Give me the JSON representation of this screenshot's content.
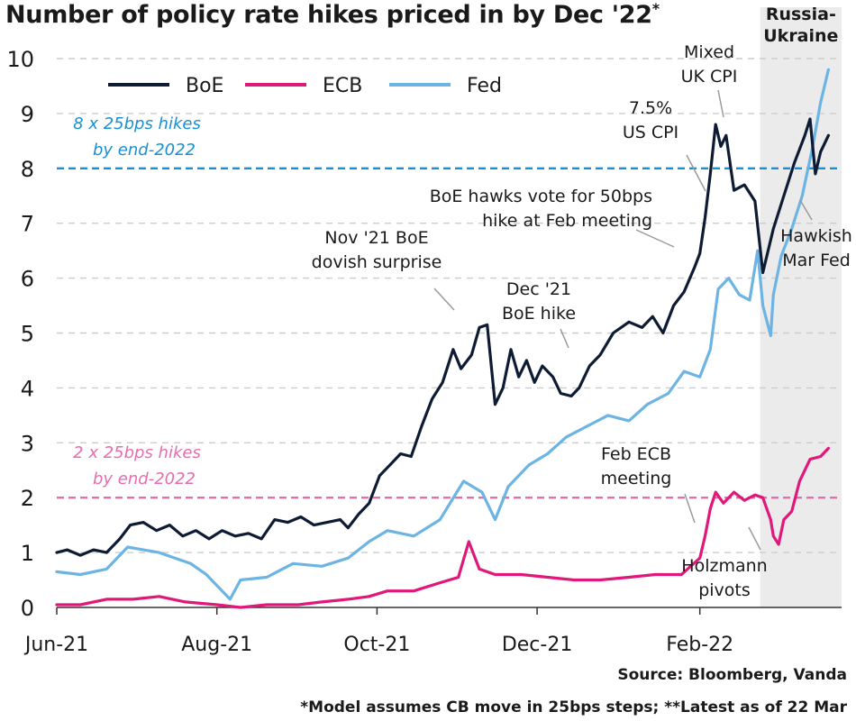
{
  "chart_data": {
    "type": "line",
    "title": "Number of policy rate hikes priced in by Dec '22",
    "title_marker": "*",
    "xlabel": "",
    "ylabel": "",
    "ylim": [
      0,
      10
    ],
    "y_ticks": [
      0,
      1,
      2,
      3,
      4,
      5,
      6,
      7,
      8,
      9,
      10
    ],
    "x_ticks": [
      {
        "date": "2021-06-01",
        "label": "Jun-21"
      },
      {
        "date": "2021-08-01",
        "label": "Aug-21"
      },
      {
        "date": "2021-10-01",
        "label": "Oct-21"
      },
      {
        "date": "2021-12-01",
        "label": "Dec-21"
      },
      {
        "date": "2022-02-01",
        "label": "Feb-22"
      }
    ],
    "xlim": [
      "2021-06-01",
      "2022-03-27"
    ],
    "grid": "horizontal dashed",
    "legend_position": "top-left",
    "colors": {
      "BoE": "#0d1b33",
      "ECB": "#e0187a",
      "Fed": "#6cb4e4",
      "ref_8": "#1a8fd4",
      "ref_2": "#e66db0",
      "shade": "#ebebeb",
      "grid": "#cccccc"
    },
    "series": [
      {
        "name": "BoE",
        "points": [
          [
            "2021-06-01",
            1.0
          ],
          [
            "2021-06-05",
            1.05
          ],
          [
            "2021-06-10",
            0.95
          ],
          [
            "2021-06-15",
            1.05
          ],
          [
            "2021-06-20",
            1.0
          ],
          [
            "2021-06-25",
            1.25
          ],
          [
            "2021-06-29",
            1.5
          ],
          [
            "2021-07-04",
            1.55
          ],
          [
            "2021-07-09",
            1.4
          ],
          [
            "2021-07-14",
            1.5
          ],
          [
            "2021-07-19",
            1.3
          ],
          [
            "2021-07-24",
            1.4
          ],
          [
            "2021-07-29",
            1.25
          ],
          [
            "2021-08-03",
            1.4
          ],
          [
            "2021-08-08",
            1.3
          ],
          [
            "2021-08-13",
            1.35
          ],
          [
            "2021-08-18",
            1.25
          ],
          [
            "2021-08-23",
            1.6
          ],
          [
            "2021-08-28",
            1.55
          ],
          [
            "2021-09-02",
            1.65
          ],
          [
            "2021-09-07",
            1.5
          ],
          [
            "2021-09-12",
            1.55
          ],
          [
            "2021-09-17",
            1.6
          ],
          [
            "2021-09-20",
            1.45
          ],
          [
            "2021-09-24",
            1.7
          ],
          [
            "2021-09-28",
            1.9
          ],
          [
            "2021-10-02",
            2.4
          ],
          [
            "2021-10-06",
            2.6
          ],
          [
            "2021-10-10",
            2.8
          ],
          [
            "2021-10-14",
            2.75
          ],
          [
            "2021-10-18",
            3.3
          ],
          [
            "2021-10-22",
            3.8
          ],
          [
            "2021-10-26",
            4.1
          ],
          [
            "2021-10-30",
            4.7
          ],
          [
            "2021-11-02",
            4.35
          ],
          [
            "2021-11-06",
            4.6
          ],
          [
            "2021-11-09",
            5.1
          ],
          [
            "2021-11-12",
            5.15
          ],
          [
            "2021-11-15",
            3.7
          ],
          [
            "2021-11-18",
            4.0
          ],
          [
            "2021-11-21",
            4.7
          ],
          [
            "2021-11-24",
            4.2
          ],
          [
            "2021-11-27",
            4.5
          ],
          [
            "2021-11-30",
            4.1
          ],
          [
            "2021-12-03",
            4.4
          ],
          [
            "2021-12-07",
            4.2
          ],
          [
            "2021-12-10",
            3.9
          ],
          [
            "2021-12-14",
            3.85
          ],
          [
            "2021-12-17",
            4.0
          ],
          [
            "2021-12-21",
            4.4
          ],
          [
            "2021-12-25",
            4.6
          ],
          [
            "2021-12-30",
            5.0
          ],
          [
            "2022-01-05",
            5.2
          ],
          [
            "2022-01-10",
            5.1
          ],
          [
            "2022-01-14",
            5.3
          ],
          [
            "2022-01-18",
            5.0
          ],
          [
            "2022-01-22",
            5.5
          ],
          [
            "2022-01-26",
            5.75
          ],
          [
            "2022-01-30",
            6.2
          ],
          [
            "2022-02-01",
            6.45
          ],
          [
            "2022-02-03",
            7.1
          ],
          [
            "2022-02-05",
            7.9
          ],
          [
            "2022-02-07",
            8.8
          ],
          [
            "2022-02-09",
            8.4
          ],
          [
            "2022-02-11",
            8.6
          ],
          [
            "2022-02-14",
            7.6
          ],
          [
            "2022-02-18",
            7.7
          ],
          [
            "2022-02-22",
            7.4
          ],
          [
            "2022-02-25",
            6.1
          ],
          [
            "2022-03-01",
            6.9
          ],
          [
            "2022-03-05",
            7.5
          ],
          [
            "2022-03-09",
            8.1
          ],
          [
            "2022-03-13",
            8.6
          ],
          [
            "2022-03-15",
            8.9
          ],
          [
            "2022-03-17",
            7.9
          ],
          [
            "2022-03-19",
            8.3
          ],
          [
            "2022-03-22",
            8.6
          ]
        ]
      },
      {
        "name": "ECB",
        "points": [
          [
            "2021-06-01",
            0.05
          ],
          [
            "2021-06-10",
            0.05
          ],
          [
            "2021-06-20",
            0.15
          ],
          [
            "2021-06-30",
            0.15
          ],
          [
            "2021-07-10",
            0.2
          ],
          [
            "2021-07-20",
            0.1
          ],
          [
            "2021-08-01",
            0.05
          ],
          [
            "2021-08-10",
            0.0
          ],
          [
            "2021-08-20",
            0.05
          ],
          [
            "2021-09-01",
            0.05
          ],
          [
            "2021-09-10",
            0.1
          ],
          [
            "2021-09-20",
            0.15
          ],
          [
            "2021-09-28",
            0.2
          ],
          [
            "2021-10-05",
            0.3
          ],
          [
            "2021-10-15",
            0.3
          ],
          [
            "2021-10-25",
            0.45
          ],
          [
            "2021-11-01",
            0.55
          ],
          [
            "2021-11-05",
            1.2
          ],
          [
            "2021-11-09",
            0.7
          ],
          [
            "2021-11-15",
            0.6
          ],
          [
            "2021-11-25",
            0.6
          ],
          [
            "2021-12-05",
            0.55
          ],
          [
            "2021-12-15",
            0.5
          ],
          [
            "2021-12-25",
            0.5
          ],
          [
            "2022-01-05",
            0.55
          ],
          [
            "2022-01-15",
            0.6
          ],
          [
            "2022-01-25",
            0.6
          ],
          [
            "2022-02-01",
            0.9
          ],
          [
            "2022-02-03",
            1.3
          ],
          [
            "2022-02-05",
            1.8
          ],
          [
            "2022-02-07",
            2.1
          ],
          [
            "2022-02-10",
            1.9
          ],
          [
            "2022-02-14",
            2.1
          ],
          [
            "2022-02-18",
            1.95
          ],
          [
            "2022-02-22",
            2.05
          ],
          [
            "2022-02-25",
            2.0
          ],
          [
            "2022-02-28",
            1.6
          ],
          [
            "2022-03-01",
            1.3
          ],
          [
            "2022-03-03",
            1.15
          ],
          [
            "2022-03-05",
            1.6
          ],
          [
            "2022-03-08",
            1.75
          ],
          [
            "2022-03-11",
            2.3
          ],
          [
            "2022-03-15",
            2.7
          ],
          [
            "2022-03-19",
            2.75
          ],
          [
            "2022-03-22",
            2.9
          ]
        ]
      },
      {
        "name": "Fed",
        "points": [
          [
            "2021-06-01",
            0.65
          ],
          [
            "2021-06-10",
            0.6
          ],
          [
            "2021-06-20",
            0.7
          ],
          [
            "2021-06-28",
            1.1
          ],
          [
            "2021-07-04",
            1.05
          ],
          [
            "2021-07-10",
            1.0
          ],
          [
            "2021-07-16",
            0.9
          ],
          [
            "2021-07-22",
            0.8
          ],
          [
            "2021-07-28",
            0.6
          ],
          [
            "2021-08-03",
            0.3
          ],
          [
            "2021-08-06",
            0.15
          ],
          [
            "2021-08-10",
            0.5
          ],
          [
            "2021-08-20",
            0.55
          ],
          [
            "2021-08-30",
            0.8
          ],
          [
            "2021-09-10",
            0.75
          ],
          [
            "2021-09-20",
            0.9
          ],
          [
            "2021-09-28",
            1.2
          ],
          [
            "2021-10-05",
            1.4
          ],
          [
            "2021-10-15",
            1.3
          ],
          [
            "2021-10-25",
            1.6
          ],
          [
            "2021-11-03",
            2.3
          ],
          [
            "2021-11-10",
            2.1
          ],
          [
            "2021-11-15",
            1.6
          ],
          [
            "2021-11-20",
            2.2
          ],
          [
            "2021-11-28",
            2.6
          ],
          [
            "2021-12-05",
            2.8
          ],
          [
            "2021-12-12",
            3.1
          ],
          [
            "2021-12-20",
            3.3
          ],
          [
            "2021-12-28",
            3.5
          ],
          [
            "2022-01-05",
            3.4
          ],
          [
            "2022-01-12",
            3.7
          ],
          [
            "2022-01-20",
            3.9
          ],
          [
            "2022-01-26",
            4.3
          ],
          [
            "2022-02-01",
            4.2
          ],
          [
            "2022-02-05",
            4.7
          ],
          [
            "2022-02-08",
            5.8
          ],
          [
            "2022-02-12",
            6.0
          ],
          [
            "2022-02-16",
            5.7
          ],
          [
            "2022-02-20",
            5.6
          ],
          [
            "2022-02-23",
            6.5
          ],
          [
            "2022-02-25",
            5.5
          ],
          [
            "2022-02-28",
            4.95
          ],
          [
            "2022-03-01",
            5.7
          ],
          [
            "2022-03-04",
            6.4
          ],
          [
            "2022-03-08",
            6.9
          ],
          [
            "2022-03-12",
            7.5
          ],
          [
            "2022-03-16",
            8.4
          ],
          [
            "2022-03-19",
            9.2
          ],
          [
            "2022-03-22",
            9.8
          ]
        ]
      }
    ],
    "reference_lines": [
      {
        "y": 8,
        "color": "#1a8fd4",
        "label_line1": "8 x 25bps hikes",
        "label_line2": "by end-2022"
      },
      {
        "y": 2,
        "color": "#e66db0",
        "label_line1": "2 x 25bps hikes",
        "label_line2": "by end-2022"
      }
    ],
    "shaded_region": {
      "from": "2022-02-24",
      "to": "2022-03-27",
      "label_line1": "Russia-",
      "label_line2": "Ukraine"
    },
    "annotations": [
      {
        "id": "mixed-uk-cpi",
        "lines": [
          "Mixed",
          "UK CPI"
        ],
        "x": "2022-02-07",
        "y": 8.8
      },
      {
        "id": "us-cpi",
        "lines": [
          "7.5%",
          "US CPI"
        ],
        "x": "2022-02-05",
        "y": 7.9
      },
      {
        "id": "boe-hawks",
        "lines": [
          "BoE hawks vote for 50bps",
          "hike at Feb meeting"
        ],
        "x": "2022-02-02",
        "y": 7.1
      },
      {
        "id": "nov-boe",
        "lines": [
          "Nov '21 BoE",
          "dovish surprise"
        ],
        "x": "2021-11-11",
        "y": 5.1
      },
      {
        "id": "dec-boe",
        "lines": [
          "Dec '21",
          "BoE hike"
        ],
        "x": "2021-12-16",
        "y": 4.5
      },
      {
        "id": "hawkish-fed",
        "lines": [
          "Hawkish",
          "Mar Fed"
        ],
        "x": "2022-03-16",
        "y": 8.2
      },
      {
        "id": "feb-ecb",
        "lines": [
          "Feb ECB",
          "meeting"
        ],
        "x": "2022-02-04",
        "y": 1.8
      },
      {
        "id": "holzmann",
        "lines": [
          "Holzmann",
          "pivots"
        ],
        "x": "2022-03-03",
        "y": 1.2
      }
    ],
    "source": "Source: Bloomberg, Vanda",
    "footnote": "*Model assumes CB move in 25bps steps; **Latest as of 22 Mar"
  }
}
